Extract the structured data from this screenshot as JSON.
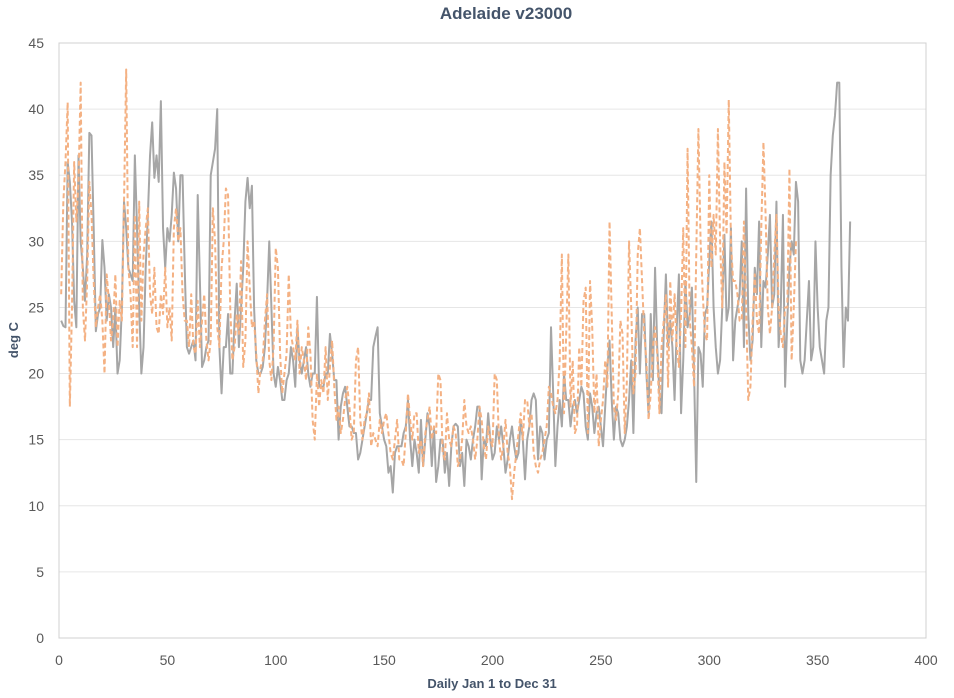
{
  "chart_data": {
    "type": "line",
    "title": "Adelaide v23000",
    "xlabel": "Daily Jan 1 to Dec 31",
    "ylabel": "deg C",
    "xlim": [
      0,
      400
    ],
    "ylim": [
      0,
      45
    ],
    "xticks": [
      0,
      50,
      100,
      150,
      200,
      250,
      300,
      350,
      400
    ],
    "yticks": [
      0,
      5,
      10,
      15,
      20,
      25,
      30,
      35,
      40,
      45
    ],
    "grid": true,
    "legend": "none",
    "series": [
      {
        "color": "#a6a6a6",
        "dash": "solid",
        "values": [
          24.0,
          23.6,
          23.5,
          36.0,
          34.5,
          31.5,
          25.5,
          23.5,
          36.5,
          30.0,
          28.0,
          25.5,
          29.0,
          38.2,
          38.0,
          31.0,
          23.2,
          24.5,
          25.0,
          30.1,
          28.0,
          24.0,
          26.0,
          25.0,
          22.0,
          25.0,
          20.0,
          21.0,
          25.0,
          33.0,
          31.0,
          28.0,
          27.5,
          27.0,
          36.5,
          31.0,
          25.0,
          20.0,
          22.0,
          28.0,
          32.0,
          36.5,
          39.0,
          34.8,
          36.5,
          34.5,
          40.6,
          31.0,
          28.0,
          31.0,
          30.0,
          32.0,
          35.2,
          34.0,
          30.0,
          35.0,
          35.0,
          28.0,
          22.0,
          21.5,
          22.0,
          22.5,
          21.0,
          33.5,
          27.0,
          20.5,
          21.0,
          22.0,
          22.5,
          35.0,
          36.0,
          37.0,
          40.0,
          22.0,
          18.5,
          22.0,
          22.0,
          24.5,
          20.0,
          20.0,
          24.0,
          26.8,
          22.0,
          25.0,
          28.0,
          33.0,
          34.8,
          32.5,
          34.2,
          25.0,
          21.0,
          20.0,
          20.0,
          20.5,
          22.0,
          25.5,
          30.0,
          25.0,
          20.0,
          19.0,
          20.5,
          19.5,
          18.0,
          18.0,
          19.5,
          20.0,
          22.0,
          21.0,
          19.0,
          23.5,
          21.0,
          20.0,
          21.0,
          22.0,
          20.0,
          19.0,
          20.0,
          20.0,
          25.8,
          19.0,
          19.0,
          19.0,
          20.0,
          20.0,
          23.0,
          21.5,
          19.5,
          19.5,
          15.0,
          17.5,
          18.5,
          19.0,
          17.5,
          16.0,
          16.0,
          15.5,
          15.5,
          13.5,
          14.0,
          15.0,
          16.0,
          17.0,
          18.0,
          18.0,
          22.0,
          22.8,
          23.5,
          17.0,
          16.0,
          15.0,
          14.5,
          12.5,
          13.0,
          11.0,
          14.0,
          14.5,
          14.5,
          14.5,
          15.5,
          16.0,
          18.0,
          15.0,
          13.0,
          15.0,
          14.0,
          12.5,
          16.5,
          13.0,
          15.0,
          17.0,
          16.0,
          13.0,
          16.0,
          11.8,
          13.0,
          15.0,
          15.0,
          12.5,
          14.0,
          11.5,
          14.5,
          16.0,
          16.2,
          16.0,
          13.0,
          14.0,
          11.5,
          15.0,
          14.5,
          13.5,
          15.0,
          16.0,
          17.5,
          17.5,
          12.0,
          15.0,
          14.5,
          17.0,
          15.0,
          13.5,
          14.0,
          16.0,
          15.0,
          16.0,
          14.5,
          12.5,
          13.5,
          15.0,
          16.0,
          14.5,
          13.5,
          14.0,
          16.5,
          15.0,
          12.0,
          15.0,
          16.0,
          18.0,
          18.5,
          18.0,
          13.5,
          16.0,
          15.5,
          13.5,
          15.0,
          15.5,
          23.5,
          18.5,
          13.0,
          16.0,
          18.0,
          16.0,
          20.0,
          18.0,
          18.0,
          16.0,
          17.5,
          18.0,
          17.0,
          18.0,
          19.0,
          18.5,
          16.0,
          15.0,
          18.5,
          17.5,
          15.5,
          17.0,
          17.5,
          16.0,
          14.5,
          17.5,
          20.5,
          22.5,
          18.0,
          15.0,
          17.5,
          17.0,
          15.0,
          14.5,
          15.0,
          16.0,
          18.0,
          21.0,
          15.5,
          22.5,
          25.0,
          20.0,
          24.5,
          24.5,
          20.0,
          17.0,
          24.5,
          19.5,
          28.0,
          22.0,
          18.5,
          17.0,
          23.0,
          27.5,
          22.0,
          24.0,
          22.0,
          18.0,
          23.5,
          27.5,
          17.0,
          21.0,
          27.0,
          23.5,
          24.5,
          26.5,
          20.0,
          11.8,
          22.0,
          21.5,
          19.0,
          24.5,
          25.0,
          28.5,
          31.5,
          25.0,
          22.0,
          20.0,
          21.0,
          25.0,
          30.5,
          24.0,
          25.0,
          31.0,
          21.0,
          24.0,
          25.0,
          26.0,
          30.0,
          22.0,
          34.0,
          24.5,
          21.0,
          22.5,
          28.0,
          26.0,
          31.5,
          22.0,
          27.0,
          26.5,
          29.0,
          32.0,
          25.0,
          26.0,
          33.0,
          22.0,
          25.0,
          32.0,
          19.0,
          24.0,
          28.0,
          30.0,
          29.0,
          34.5,
          33.0,
          21.0,
          20.0,
          21.0,
          24.0,
          27.0,
          21.0,
          22.0,
          30.0,
          25.0,
          22.0,
          21.0,
          20.0,
          24.0,
          25.0,
          35.0,
          38.0,
          39.5,
          42.0,
          42.0,
          28.0,
          20.5,
          25.0,
          24.0,
          31.5
        ]
      },
      {
        "color": "#f4b183",
        "dash": "dashed",
        "values": [
          26.0,
          33.0,
          36.0,
          40.5,
          17.5,
          25.0,
          36.0,
          31.5,
          34.5,
          42.0,
          25.0,
          22.5,
          27.0,
          34.5,
          32.0,
          27.0,
          23.5,
          25.0,
          26.0,
          24.0,
          20.0,
          27.5,
          25.5,
          22.5,
          24.0,
          27.5,
          22.0,
          25.5,
          24.0,
          33.0,
          43.0,
          28.0,
          26.0,
          22.0,
          32.0,
          22.0,
          33.0,
          24.0,
          29.0,
          31.0,
          32.5,
          26.0,
          24.5,
          28.0,
          23.5,
          23.0,
          26.0,
          24.5,
          28.0,
          23.5,
          25.0,
          22.5,
          31.0,
          32.5,
          30.0,
          31.0,
          26.0,
          24.0,
          24.0,
          22.0,
          26.0,
          22.0,
          21.5,
          25.5,
          22.0,
          24.0,
          26.0,
          22.5,
          21.0,
          22.5,
          32.5,
          30.0,
          23.5,
          22.0,
          28.0,
          30.0,
          34.0,
          33.5,
          25.0,
          21.0,
          22.0,
          24.5,
          23.0,
          28.5,
          20.5,
          22.5,
          30.0,
          26.5,
          23.5,
          24.0,
          21.5,
          18.5,
          20.5,
          21.0,
          24.0,
          26.0,
          21.0,
          19.5,
          22.0,
          29.5,
          28.0,
          21.5,
          18.5,
          20.0,
          21.5,
          27.5,
          23.0,
          22.0,
          21.0,
          24.0,
          20.0,
          22.0,
          21.0,
          19.5,
          23.5,
          21.5,
          16.5,
          15.0,
          20.0,
          17.5,
          19.5,
          18.5,
          22.0,
          18.0,
          20.5,
          22.5,
          19.0,
          16.5,
          17.5,
          15.5,
          16.5,
          18.0,
          19.0,
          17.5,
          15.0,
          15.5,
          21.0,
          22.0,
          16.5,
          15.0,
          16.5,
          17.0,
          18.5,
          14.5,
          15.5,
          15.0,
          14.5,
          16.5,
          15.5,
          16.5,
          17.0,
          15.5,
          14.0,
          13.5,
          15.0,
          16.5,
          13.5,
          13.5,
          13.0,
          15.5,
          18.5,
          16.5,
          15.0,
          17.0,
          17.0,
          14.0,
          15.0,
          13.0,
          15.5,
          16.5,
          17.5,
          15.0,
          16.0,
          15.5,
          20.0,
          19.5,
          14.0,
          13.5,
          17.0,
          15.0,
          14.5,
          16.0,
          15.5,
          13.0,
          13.5,
          15.0,
          18.0,
          16.0,
          15.5,
          16.0,
          15.0,
          13.5,
          15.0,
          17.5,
          16.5,
          14.5,
          13.5,
          16.0,
          15.0,
          14.5,
          20.0,
          19.5,
          15.0,
          13.5,
          14.5,
          16.5,
          14.0,
          13.0,
          10.5,
          12.5,
          14.0,
          15.5,
          17.0,
          15.0,
          18.0,
          18.0,
          16.0,
          17.0,
          14.0,
          13.0,
          12.5,
          13.5,
          14.0,
          15.0,
          16.0,
          19.0,
          18.5,
          17.5,
          17.0,
          18.0,
          21.0,
          29.0,
          17.0,
          23.0,
          29.0,
          17.5,
          21.0,
          15.5,
          16.0,
          22.0,
          19.0,
          25.5,
          26.5,
          15.5,
          27.0,
          23.5,
          17.0,
          20.0,
          14.5,
          16.5,
          18.0,
          21.0,
          19.0,
          31.5,
          24.5,
          17.5,
          16.5,
          18.5,
          24.0,
          23.0,
          15.5,
          19.5,
          30.0,
          25.0,
          18.5,
          20.0,
          29.0,
          31.0,
          27.0,
          23.0,
          21.0,
          16.5,
          18.5,
          22.0,
          23.5,
          21.5,
          17.0,
          22.0,
          24.0,
          26.0,
          19.0,
          27.0,
          22.5,
          26.0,
          22.0,
          20.5,
          24.5,
          31.0,
          22.0,
          37.0,
          24.0,
          22.0,
          19.0,
          29.0,
          38.5,
          30.0,
          26.0,
          23.0,
          22.5,
          35.0,
          28.0,
          32.0,
          29.0,
          38.5,
          30.0,
          25.0,
          36.0,
          30.5,
          40.7,
          30.0,
          27.0,
          27.0,
          26.0,
          24.0,
          24.0,
          31.5,
          25.0,
          18.0,
          19.0,
          24.0,
          27.5,
          24.0,
          23.0,
          31.0,
          37.5,
          32.0,
          25.0,
          23.0,
          25.0,
          29.0,
          32.0,
          25.0,
          23.0,
          22.0,
          25.0,
          25.0,
          35.5,
          21.0,
          25.0,
          30.0
        ]
      }
    ]
  }
}
